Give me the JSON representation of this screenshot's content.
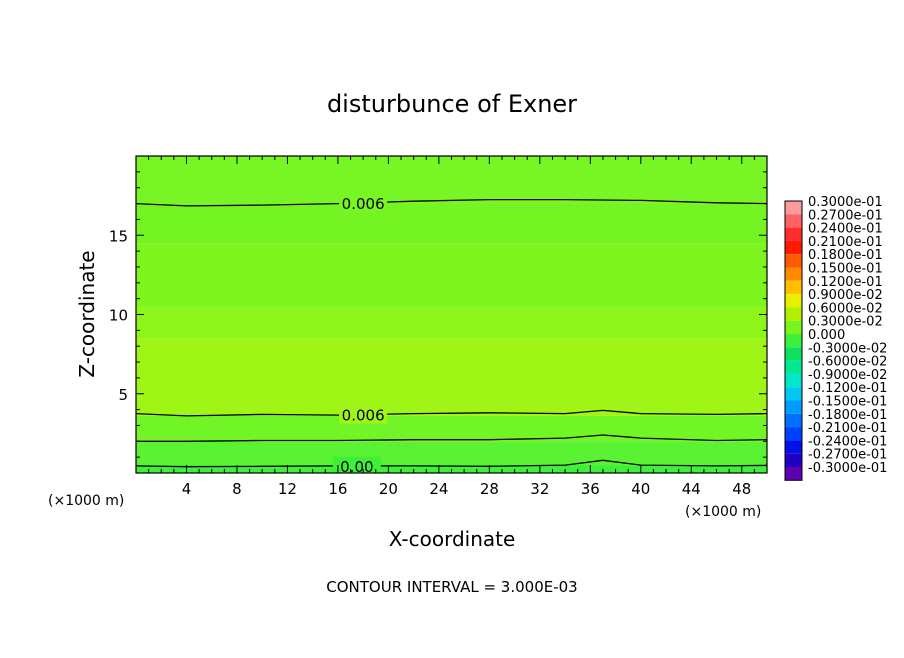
{
  "chart_data": {
    "type": "heatmap",
    "title": "disturbunce of Exner",
    "xlabel": "X-coordinate",
    "ylabel": "Z-coordinate",
    "x_unit_note": "(×1000 m)",
    "x_unit_note_right": "(×1000 m)",
    "footer": "CONTOUR INTERVAL = 3.000E-03",
    "xlim": [
      0,
      50
    ],
    "ylim": [
      0,
      20
    ],
    "xticks": [
      4,
      8,
      12,
      16,
      20,
      24,
      28,
      32,
      36,
      40,
      44,
      48
    ],
    "yticks": [
      5,
      10,
      15
    ],
    "grid": false,
    "bands": [
      {
        "z_from": 0,
        "z_to": 0.5,
        "value": 0.0,
        "color": "#3ef039"
      },
      {
        "z_from": 0.5,
        "z_to": 2.0,
        "value": 0.003,
        "color": "#5af232"
      },
      {
        "z_from": 2.0,
        "z_to": 3.6,
        "value": 0.006,
        "color": "#72f527"
      },
      {
        "z_from": 3.6,
        "z_to": 8.5,
        "value": 0.0085,
        "color": "#9ff515"
      },
      {
        "z_from": 8.5,
        "z_to": 10.5,
        "value": 0.0075,
        "color": "#8ef51b"
      },
      {
        "z_from": 10.5,
        "z_to": 14.5,
        "value": 0.0068,
        "color": "#7ff520"
      },
      {
        "z_from": 14.5,
        "z_to": 17.0,
        "value": 0.0062,
        "color": "#74f523"
      },
      {
        "z_from": 17.0,
        "z_to": 20.0,
        "value": 0.005,
        "color": "#78f524"
      }
    ],
    "contours": [
      {
        "label": "0.00",
        "level": 0.0,
        "x": [
          0,
          4,
          10,
          16,
          22,
          28,
          34,
          37,
          40,
          46,
          50
        ],
        "z": [
          0.45,
          0.4,
          0.42,
          0.45,
          0.45,
          0.42,
          0.5,
          0.8,
          0.5,
          0.45,
          0.48
        ],
        "label_x": 17.5
      },
      {
        "label": "",
        "level": 0.003,
        "x": [
          0,
          4,
          10,
          16,
          22,
          28,
          34,
          37,
          40,
          46,
          50
        ],
        "z": [
          2.0,
          2.0,
          2.05,
          2.05,
          2.1,
          2.1,
          2.2,
          2.4,
          2.2,
          2.05,
          2.1
        ],
        "label_x": null
      },
      {
        "label": "0.006",
        "level": 0.006,
        "x": [
          0,
          4,
          10,
          16,
          22,
          28,
          34,
          37,
          40,
          46,
          50
        ],
        "z": [
          3.75,
          3.6,
          3.7,
          3.65,
          3.75,
          3.8,
          3.75,
          3.95,
          3.75,
          3.7,
          3.75
        ],
        "label_x": 18.0
      },
      {
        "label": "0.006",
        "level": 0.006,
        "x": [
          0,
          4,
          10,
          16,
          22,
          28,
          34,
          40,
          46,
          50
        ],
        "z": [
          17.0,
          16.85,
          16.9,
          17.0,
          17.15,
          17.25,
          17.25,
          17.2,
          17.05,
          17.0
        ],
        "label_x": 18.0
      }
    ],
    "colorbar": {
      "labels": [
        "0.3000e-01",
        "0.2700e-01",
        "0.2400e-01",
        "0.2100e-01",
        "0.1800e-01",
        "0.1500e-01",
        "0.1200e-01",
        "0.9000e-02",
        "0.6000e-02",
        "0.3000e-02",
        "0.000",
        "-0.3000e-02",
        "-0.6000e-02",
        "-0.9000e-02",
        "-0.1200e-01",
        "-0.1500e-01",
        "-0.1800e-01",
        "-0.2100e-01",
        "-0.2400e-01",
        "-0.2700e-01",
        "-0.3000e-01"
      ],
      "colors": [
        "#ff9a9a",
        "#ff6060",
        "#ff2d2d",
        "#ff1a00",
        "#ff5a00",
        "#ff8c00",
        "#ffc000",
        "#e8f000",
        "#b0f000",
        "#78f51e",
        "#3ef039",
        "#10e060",
        "#00e890",
        "#00e8c8",
        "#00c8f0",
        "#009cff",
        "#0070ff",
        "#0040ff",
        "#0010e8",
        "#2000c0",
        "#6000b0"
      ]
    }
  }
}
